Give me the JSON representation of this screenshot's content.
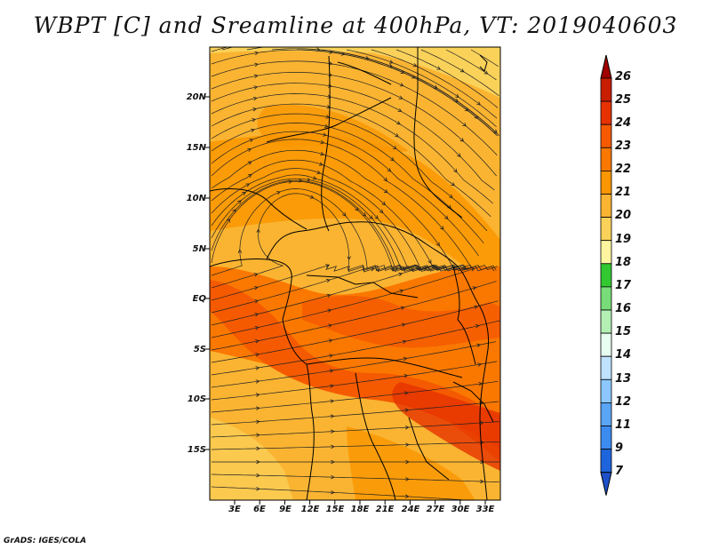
{
  "title": "WBPT [C] and Sreamline at 400hPa, VT: 2019040603",
  "credit": "GrADS: IGES/COLA",
  "map": {
    "lat_labels": [
      "20N",
      "15N",
      "10N",
      "5N",
      "EQ",
      "5S",
      "10S",
      "15S"
    ],
    "lon_labels": [
      "3E",
      "6E",
      "9E",
      "12E",
      "15E",
      "18E",
      "21E",
      "24E",
      "27E",
      "30E",
      "33E"
    ],
    "field": "wet-bulb potential temperature with streamlines"
  },
  "colorbar": {
    "levels": [
      "26",
      "25",
      "24",
      "23",
      "22",
      "21",
      "20",
      "19",
      "18",
      "17",
      "16",
      "15",
      "14",
      "13",
      "12",
      "11",
      "9",
      "7"
    ],
    "colors": [
      "#a00000",
      "#c81e00",
      "#e63200",
      "#f55a00",
      "#fa7800",
      "#fa9600",
      "#fab432",
      "#fad25a",
      "#fff5a0",
      "#32c832",
      "#78dc78",
      "#b4f0b4",
      "#e6fff0",
      "#bfe3ff",
      "#8cc8ff",
      "#5aa5f5",
      "#3c8cf0",
      "#1e64dc",
      "#1e50c8"
    ]
  }
}
